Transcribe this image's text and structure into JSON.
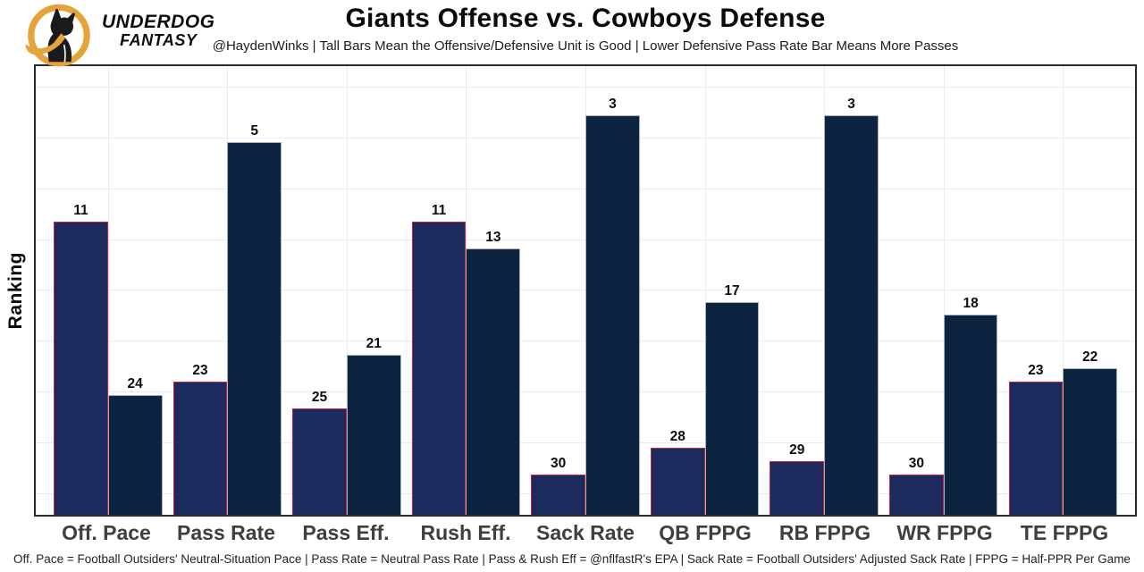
{
  "header": {
    "brand_line1": "UNDERDOG",
    "brand_line2": "FANTASY",
    "title": "Giants Offense vs. Cowboys Defense",
    "subtitle": "@HaydenWinks | Tall Bars Mean the Offensive/Defensive Unit is Good | Lower Defensive Pass Rate Bar Means More Passes"
  },
  "chart_data": {
    "type": "bar",
    "title": "Giants Offense vs. Cowboys Defense",
    "subtitle": "@HaydenWinks | Tall Bars Mean the Offensive/Defensive Unit is Good | Lower Defensive Pass Rate Bar Means More Passes",
    "ylabel": "Ranking",
    "xlabel": "",
    "categories": [
      "Off. Pace",
      "Pass Rate",
      "Pass Eff.",
      "Rush Eff.",
      "Sack Rate",
      "QB FPPG",
      "RB FPPG",
      "WR FPPG",
      "TE FPPG"
    ],
    "series": [
      {
        "name": "Giants Offense",
        "role": "offense",
        "values": [
          11,
          23,
          25,
          11,
          30,
          28,
          29,
          30,
          23
        ],
        "fill": "#1c2a5e",
        "border": "#c9203c"
      },
      {
        "name": "Cowboys Defense",
        "role": "defense",
        "values": [
          24,
          5,
          21,
          13,
          3,
          17,
          3,
          18,
          22
        ],
        "fill": "#0d2440",
        "border": "#a9b3bd"
      }
    ],
    "value_meaning": "NFL rank out of 32 (1 = best); taller bar = better unit",
    "ylim": [
      0,
      33
    ],
    "grid": true,
    "legend_position": "none",
    "colors": {
      "grid": "#ececec",
      "frame": "#2b2b2b",
      "axis_text": "#3f3f3f",
      "value_label": "#0e0e0e",
      "gold": "#E5A33C"
    }
  },
  "footer": {
    "text": "Off. Pace = Football Outsiders' Neutral-Situation Pace | Pass Rate = Neutral Pass Rate | Pass & Rush Eff = @nflfastR's EPA | Sack Rate = Football Outsiders' Adjusted Sack Rate | FPPG = Half-PPR Per Game"
  }
}
